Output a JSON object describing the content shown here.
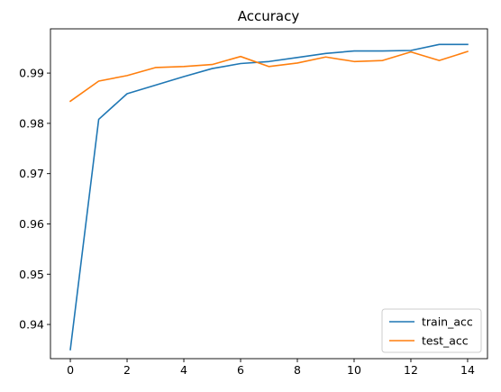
{
  "chart_data": {
    "type": "line",
    "title": "Accuracy",
    "xlabel": "",
    "ylabel": "",
    "x": [
      0,
      1,
      2,
      3,
      4,
      5,
      6,
      7,
      8,
      9,
      10,
      11,
      12,
      13,
      14
    ],
    "xlim": [
      -0.7,
      14.7
    ],
    "ylim": [
      0.9332,
      0.9988
    ],
    "xticks": [
      0,
      2,
      4,
      6,
      8,
      10,
      12,
      14
    ],
    "yticks": [
      0.94,
      0.95,
      0.96,
      0.97,
      0.98,
      0.99
    ],
    "xtick_labels": [
      "0",
      "2",
      "4",
      "6",
      "8",
      "10",
      "12",
      "14"
    ],
    "ytick_labels": [
      "0.94",
      "0.95",
      "0.96",
      "0.97",
      "0.98",
      "0.99"
    ],
    "grid": false,
    "legend_position": "lower-right",
    "series": [
      {
        "name": "train_acc",
        "color": "#1f77b4",
        "values": [
          0.935,
          0.9808,
          0.9859,
          0.9876,
          0.9893,
          0.9909,
          0.9919,
          0.9923,
          0.9931,
          0.9939,
          0.9944,
          0.9944,
          0.9945,
          0.9957,
          0.9957
        ]
      },
      {
        "name": "test_acc",
        "color": "#ff7f0e",
        "values": [
          0.9844,
          0.9884,
          0.9895,
          0.9911,
          0.9913,
          0.9917,
          0.9933,
          0.9913,
          0.992,
          0.9932,
          0.9923,
          0.9925,
          0.9942,
          0.9925,
          0.9943
        ]
      }
    ]
  }
}
